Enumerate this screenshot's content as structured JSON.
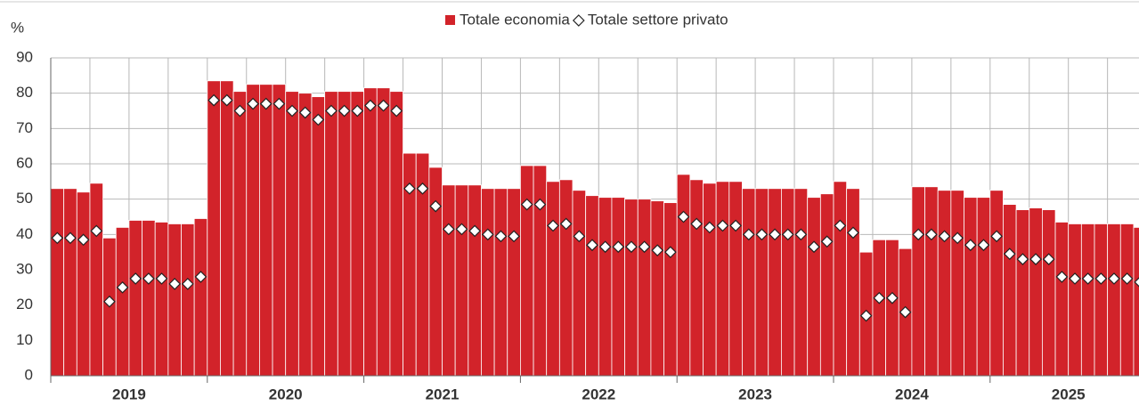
{
  "chart_data": {
    "type": "bar",
    "y_label": "%",
    "years": [
      "2019",
      "2020",
      "2021",
      "2022",
      "2023",
      "2024",
      "2025"
    ],
    "months_per_year": 12,
    "ylim": [
      0,
      90
    ],
    "yticks": [
      0,
      10,
      20,
      30,
      40,
      50,
      60,
      70,
      80,
      90
    ],
    "grid": true,
    "series": [
      {
        "name": "Totale economia",
        "color": "#d2232a",
        "marker": "bar",
        "values": [
          53,
          53,
          52,
          54.5,
          39,
          42,
          44,
          44,
          43.5,
          43,
          43,
          44.5,
          83.5,
          83.5,
          80.5,
          82.5,
          82.5,
          82.5,
          80.5,
          80,
          79,
          80.5,
          80.5,
          80.5,
          81.5,
          81.5,
          80.5,
          63,
          63,
          59,
          54,
          54,
          54,
          53,
          53,
          53,
          59.5,
          59.5,
          55,
          55.5,
          52.5,
          51,
          50.5,
          50.5,
          50,
          50,
          49.5,
          49,
          57,
          55.5,
          54.5,
          55,
          55,
          53,
          53,
          53,
          53,
          53,
          50.5,
          51.5,
          55,
          53,
          35,
          38.5,
          38.5,
          36,
          53.5,
          53.5,
          52.5,
          52.5,
          50.5,
          50.5,
          52.5,
          48.5,
          47,
          47.5,
          47,
          43.5,
          43,
          43,
          43,
          43,
          43,
          42
        ]
      },
      {
        "name": "Totale settore privato",
        "color": "#ffffff",
        "marker": "diamond",
        "values": [
          39,
          39,
          38.5,
          41,
          21,
          25,
          27.5,
          27.5,
          27.5,
          26,
          26,
          28,
          78,
          78,
          75,
          77,
          77,
          77,
          75,
          74.5,
          72.5,
          75,
          75,
          75,
          76.5,
          76.5,
          75,
          53,
          53,
          48,
          41.5,
          41.5,
          41,
          40,
          39.5,
          39.5,
          48.5,
          48.5,
          42.5,
          43,
          39.5,
          37,
          36.5,
          36.5,
          36.5,
          36.5,
          35.5,
          35,
          45,
          43,
          42,
          42.5,
          42.5,
          40,
          40,
          40,
          40,
          40,
          36.5,
          38,
          42.5,
          40.5,
          17,
          22,
          22,
          18,
          40,
          40,
          39.5,
          39,
          37,
          37,
          39.5,
          34.5,
          33,
          33,
          33,
          28,
          27.5,
          27.5,
          27.5,
          27.5,
          27.5,
          26.5
        ]
      }
    ]
  }
}
